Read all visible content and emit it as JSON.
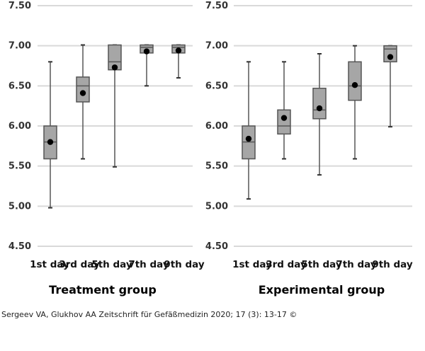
{
  "credit": "Sergeev VA, Glukhov AA Zeitschrift für Gefäßmedizin 2020; 17 (3): 13-17 ©",
  "chart_data": [
    {
      "type": "box",
      "title": "Treatment group",
      "ylim": [
        4.5,
        7.5
      ],
      "yticks": [
        "7.50",
        "7.00",
        "6.50",
        "6.00",
        "5.50",
        "5.00",
        "4.50"
      ],
      "ytick_values": [
        7.5,
        7.0,
        6.5,
        6.0,
        5.5,
        5.0,
        4.5
      ],
      "grid": true,
      "categories": [
        "1st day",
        "3rd day",
        "5th day",
        "7th day",
        "9th day"
      ],
      "boxes": [
        {
          "min": 4.98,
          "q1": 5.59,
          "median": 5.8,
          "q3": 6.0,
          "max": 6.8,
          "mean": 5.8
        },
        {
          "min": 5.59,
          "q1": 6.3,
          "median": 6.5,
          "q3": 6.61,
          "max": 7.01,
          "mean": 6.41
        },
        {
          "min": 5.49,
          "q1": 6.7,
          "median": 6.8,
          "q3": 7.01,
          "max": 7.01,
          "mean": 6.73
        },
        {
          "min": 6.5,
          "q1": 6.91,
          "median": 6.98,
          "q3": 7.01,
          "max": 7.01,
          "mean": 6.93
        },
        {
          "min": 6.6,
          "q1": 6.91,
          "median": 6.98,
          "q3": 7.01,
          "max": 7.01,
          "mean": 6.94
        }
      ]
    },
    {
      "type": "box",
      "title": "Experimental group",
      "ylim": [
        4.5,
        7.5
      ],
      "yticks": [
        "7.50",
        "7.00",
        "6.50",
        "6.00",
        "5.50",
        "5.00",
        "4.50"
      ],
      "ytick_values": [
        7.5,
        7.0,
        6.5,
        6.0,
        5.5,
        5.0,
        4.5
      ],
      "grid": true,
      "categories": [
        "1st day",
        "3rd day",
        "5th day",
        "7th day",
        "9th day"
      ],
      "boxes": [
        {
          "min": 5.09,
          "q1": 5.59,
          "median": 5.8,
          "q3": 6.0,
          "max": 6.8,
          "mean": 5.84
        },
        {
          "min": 5.59,
          "q1": 5.9,
          "median": 6.0,
          "q3": 6.2,
          "max": 6.8,
          "mean": 6.1
        },
        {
          "min": 5.39,
          "q1": 6.09,
          "median": 6.2,
          "q3": 6.47,
          "max": 6.9,
          "mean": 6.22
        },
        {
          "min": 5.59,
          "q1": 6.32,
          "median": 6.5,
          "q3": 6.8,
          "max": 7.0,
          "mean": 6.51
        },
        {
          "min": 5.99,
          "q1": 6.8,
          "median": 6.96,
          "q3": 7.0,
          "max": 7.0,
          "mean": 6.86
        }
      ]
    }
  ]
}
